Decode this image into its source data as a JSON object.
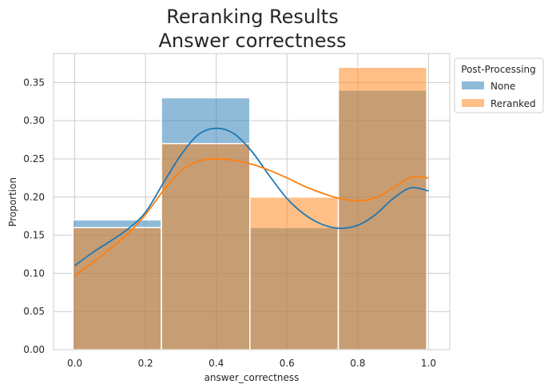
{
  "chart_data": {
    "type": "histogram",
    "title": [
      "Reranking Results",
      "Answer correctness"
    ],
    "xlabel": "answer_correctness",
    "ylabel": "Proportion",
    "xlim": [
      -0.06,
      1.06
    ],
    "ylim": [
      0,
      0.388
    ],
    "xticks": [
      0.0,
      0.2,
      0.4,
      0.6,
      0.8,
      1.0
    ],
    "xtick_labels": [
      "0.0",
      "0.2",
      "0.4",
      "0.6",
      "0.8",
      "1.0"
    ],
    "yticks": [
      0,
      0.05,
      0.1,
      0.15,
      0.2,
      0.25,
      0.3,
      0.35
    ],
    "ytick_labels": [
      "0.00",
      "0.05",
      "0.10",
      "0.15",
      "0.20",
      "0.25",
      "0.30",
      "0.35"
    ],
    "bins": [
      [
        -0.005,
        0.245
      ],
      [
        0.245,
        0.495
      ],
      [
        0.495,
        0.745
      ],
      [
        0.745,
        0.995
      ]
    ],
    "grid": true,
    "legend": {
      "title": "Post-Processing",
      "placement": "outside-top-right"
    },
    "series": [
      {
        "name": "None",
        "color": "#1f77b4",
        "values": [
          0.17,
          0.33,
          0.16,
          0.34
        ],
        "kde": [
          [
            0.0,
            0.11
          ],
          [
            0.05,
            0.127
          ],
          [
            0.1,
            0.142
          ],
          [
            0.15,
            0.158
          ],
          [
            0.2,
            0.18
          ],
          [
            0.25,
            0.218
          ],
          [
            0.3,
            0.255
          ],
          [
            0.35,
            0.282
          ],
          [
            0.4,
            0.29
          ],
          [
            0.45,
            0.283
          ],
          [
            0.5,
            0.26
          ],
          [
            0.55,
            0.228
          ],
          [
            0.6,
            0.198
          ],
          [
            0.65,
            0.177
          ],
          [
            0.7,
            0.164
          ],
          [
            0.75,
            0.159
          ],
          [
            0.8,
            0.163
          ],
          [
            0.85,
            0.177
          ],
          [
            0.9,
            0.198
          ],
          [
            0.95,
            0.212
          ],
          [
            1.0,
            0.208
          ]
        ]
      },
      {
        "name": "Reranked",
        "color": "#ff7f0e",
        "values": [
          0.16,
          0.27,
          0.2,
          0.37
        ],
        "kde": [
          [
            0.0,
            0.097
          ],
          [
            0.05,
            0.114
          ],
          [
            0.1,
            0.132
          ],
          [
            0.15,
            0.152
          ],
          [
            0.2,
            0.177
          ],
          [
            0.25,
            0.208
          ],
          [
            0.3,
            0.234
          ],
          [
            0.35,
            0.247
          ],
          [
            0.4,
            0.25
          ],
          [
            0.45,
            0.248
          ],
          [
            0.5,
            0.243
          ],
          [
            0.55,
            0.235
          ],
          [
            0.6,
            0.225
          ],
          [
            0.65,
            0.214
          ],
          [
            0.7,
            0.205
          ],
          [
            0.75,
            0.198
          ],
          [
            0.8,
            0.195
          ],
          [
            0.85,
            0.199
          ],
          [
            0.9,
            0.212
          ],
          [
            0.95,
            0.226
          ],
          [
            1.0,
            0.225
          ]
        ]
      }
    ]
  }
}
